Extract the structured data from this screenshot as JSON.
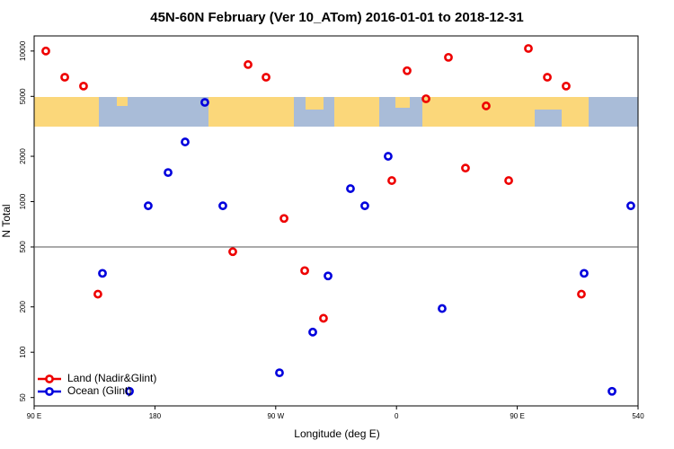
{
  "chart_data": {
    "type": "scatter",
    "title": "45N-60N February (Ver 10_ATom)   2016-01-01 to 2018-12-31",
    "x_label": "Longitude (deg E)",
    "y_label": "N Total",
    "xlim": [
      90,
      540
    ],
    "xticks": [
      {
        "value": 90,
        "label": "90 E"
      },
      180,
      {
        "value": 270,
        "label": "90 W"
      },
      {
        "value": 360,
        "label": "0"
      },
      {
        "value": 450,
        "label": "90 E"
      },
      540
    ],
    "ylim": [
      44,
      12600
    ],
    "y_log": true,
    "yticks": [
      50,
      100,
      200,
      500,
      1000,
      2000,
      5000,
      10000
    ],
    "reference_line": 500,
    "legend": "bottom-left",
    "series": [
      {
        "name": "Land (Nadir&Glint)",
        "color": "#ee0000",
        "x": [
          98.7,
          112.8,
          126.8,
          137.5,
          238,
          249.4,
          262.8,
          276.2,
          291.6,
          305.6,
          356.5,
          367.9,
          382,
          398.7,
          411.4,
          426.8,
          443.6,
          458.3,
          472.4,
          486.4,
          497.8
        ],
        "values": [
          10000,
          6700,
          5850,
          243,
          465,
          8130,
          6700,
          773,
          348,
          168,
          1380,
          7400,
          4820,
          9080,
          1670,
          4320,
          1380,
          10400,
          6700,
          5850,
          243
        ]
      },
      {
        "name": "Ocean (Glint)",
        "color": "#0000dd",
        "x": [
          140.9,
          161,
          175,
          189.8,
          202.5,
          217.2,
          230.6,
          272.8,
          297.6,
          309,
          325.7,
          336.4,
          353.8,
          394,
          499.8,
          520.6,
          534.6
        ],
        "values": [
          334,
          55,
          938,
          1560,
          2490,
          4560,
          938,
          73,
          136,
          321,
          1220,
          938,
          2000,
          195,
          334,
          55,
          938
        ]
      }
    ]
  }
}
